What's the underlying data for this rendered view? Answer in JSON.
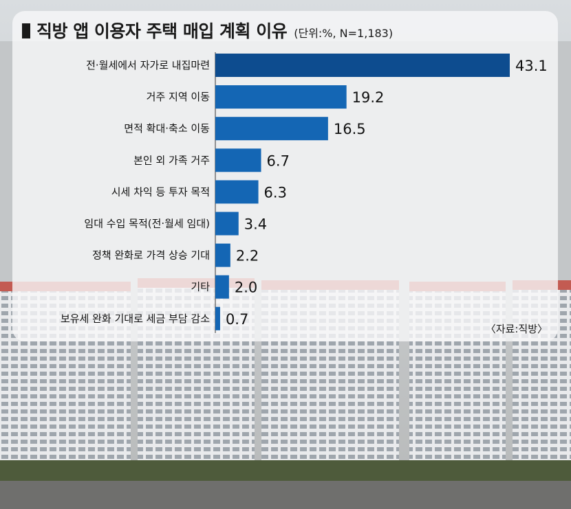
{
  "title": "직방 앱 이용자 주택 매입 계획 이유",
  "unit_note": "(단위:%, N=1,183)",
  "source": "〈자료:직방〉",
  "colors": {
    "bar_top": "#0d4c8f",
    "bar": "#1466b4",
    "text": "#111111"
  },
  "chart_data": {
    "type": "bar",
    "orientation": "horizontal",
    "title": "직방 앱 이용자 주택 매입 계획 이유",
    "unit": "%",
    "categories": [
      "전·월세에서 자가로 내집마련",
      "거주 지역 이동",
      "면적 확대·축소 이동",
      "본인 외 가족 거주",
      "시세 차익 등 투자 목적",
      "임대 수입 목적(전·월세 임대)",
      "정책 완화로 가격 상승 기대",
      "기타",
      "보유세 완화 기대로 세금 부담 감소"
    ],
    "values": [
      43.1,
      19.2,
      16.5,
      6.7,
      6.3,
      3.4,
      2.2,
      2.0,
      0.7
    ],
    "value_labels": [
      "43.1",
      "19.2",
      "16.5",
      "6.7",
      "6.3",
      "3.4",
      "2.2",
      "2.0",
      "0.7"
    ],
    "xlim": [
      0,
      43.1
    ]
  }
}
